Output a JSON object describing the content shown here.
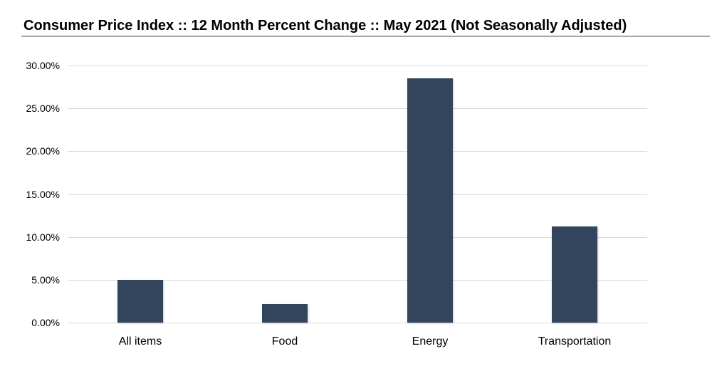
{
  "header": {
    "title": "Consumer Price Index :: 12 Month Percent Change :: May 2021 (Not Seasonally Adjusted)"
  },
  "chart_data": {
    "type": "bar",
    "title": "Consumer Price Index :: 12 Month Percent Change :: May 2021 (Not Seasonally Adjusted)",
    "categories": [
      "All items",
      "Food",
      "Energy",
      "Transportation"
    ],
    "values": [
      5.0,
      2.2,
      28.5,
      11.2
    ],
    "xlabel": "",
    "ylabel": "",
    "ylim": [
      0,
      30
    ],
    "ytick_step": 5,
    "ytick_labels": [
      "0.00%",
      "5.00%",
      "10.00%",
      "15.00%",
      "20.00%",
      "25.00%",
      "30.00%"
    ],
    "grid": true,
    "legend_position": "none",
    "bar_color": "#32455c",
    "gridline_color": "#d9d9d9",
    "title_rule_color": "#a6a6a6",
    "background_color": "#ffffff"
  }
}
